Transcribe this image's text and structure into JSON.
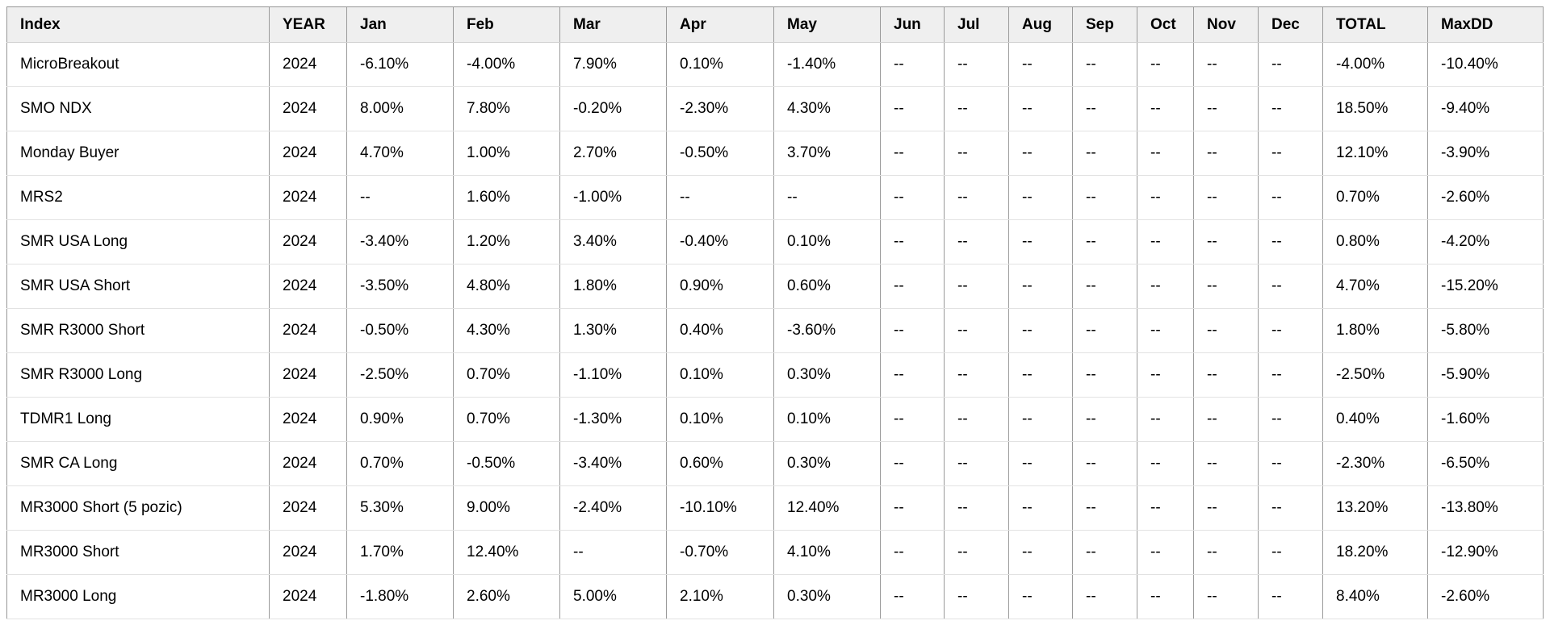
{
  "table": {
    "columns": [
      "Index",
      "YEAR",
      "Jan",
      "Feb",
      "Mar",
      "Apr",
      "May",
      "Jun",
      "Jul",
      "Aug",
      "Sep",
      "Oct",
      "Nov",
      "Dec",
      "TOTAL",
      "MaxDD"
    ],
    "rows": [
      {
        "index": "MicroBreakout",
        "year": "2024",
        "months": [
          "-6.10%",
          "-4.00%",
          "7.90%",
          "0.10%",
          "-1.40%",
          "--",
          "--",
          "--",
          "--",
          "--",
          "--",
          "--"
        ],
        "total": "-4.00%",
        "maxdd": "-10.40%"
      },
      {
        "index": "SMO NDX",
        "year": "2024",
        "months": [
          "8.00%",
          "7.80%",
          "-0.20%",
          "-2.30%",
          "4.30%",
          "--",
          "--",
          "--",
          "--",
          "--",
          "--",
          "--"
        ],
        "total": "18.50%",
        "maxdd": "-9.40%"
      },
      {
        "index": "Monday Buyer",
        "year": "2024",
        "months": [
          "4.70%",
          "1.00%",
          "2.70%",
          "-0.50%",
          "3.70%",
          "--",
          "--",
          "--",
          "--",
          "--",
          "--",
          "--"
        ],
        "total": "12.10%",
        "maxdd": "-3.90%"
      },
      {
        "index": "MRS2",
        "year": "2024",
        "months": [
          "--",
          "1.60%",
          "-1.00%",
          "--",
          "--",
          "--",
          "--",
          "--",
          "--",
          "--",
          "--",
          "--"
        ],
        "total": "0.70%",
        "maxdd": "-2.60%"
      },
      {
        "index": "SMR USA Long",
        "year": "2024",
        "months": [
          "-3.40%",
          "1.20%",
          "3.40%",
          "-0.40%",
          "0.10%",
          "--",
          "--",
          "--",
          "--",
          "--",
          "--",
          "--"
        ],
        "total": "0.80%",
        "maxdd": "-4.20%"
      },
      {
        "index": "SMR USA Short",
        "year": "2024",
        "months": [
          "-3.50%",
          "4.80%",
          "1.80%",
          "0.90%",
          "0.60%",
          "--",
          "--",
          "--",
          "--",
          "--",
          "--",
          "--"
        ],
        "total": "4.70%",
        "maxdd": "-15.20%"
      },
      {
        "index": "SMR R3000 Short",
        "year": "2024",
        "months": [
          "-0.50%",
          "4.30%",
          "1.30%",
          "0.40%",
          "-3.60%",
          "--",
          "--",
          "--",
          "--",
          "--",
          "--",
          "--"
        ],
        "total": "1.80%",
        "maxdd": "-5.80%"
      },
      {
        "index": "SMR R3000 Long",
        "year": "2024",
        "months": [
          "-2.50%",
          "0.70%",
          "-1.10%",
          "0.10%",
          "0.30%",
          "--",
          "--",
          "--",
          "--",
          "--",
          "--",
          "--"
        ],
        "total": "-2.50%",
        "maxdd": "-5.90%"
      },
      {
        "index": "TDMR1 Long",
        "year": "2024",
        "months": [
          "0.90%",
          "0.70%",
          "-1.30%",
          "0.10%",
          "0.10%",
          "--",
          "--",
          "--",
          "--",
          "--",
          "--",
          "--"
        ],
        "total": "0.40%",
        "maxdd": "-1.60%"
      },
      {
        "index": "SMR CA Long",
        "year": "2024",
        "months": [
          "0.70%",
          "-0.50%",
          "-3.40%",
          "0.60%",
          "0.30%",
          "--",
          "--",
          "--",
          "--",
          "--",
          "--",
          "--"
        ],
        "total": "-2.30%",
        "maxdd": "-6.50%"
      },
      {
        "index": "MR3000 Short (5 pozic)",
        "year": "2024",
        "months": [
          "5.30%",
          "9.00%",
          "-2.40%",
          "-10.10%",
          "12.40%",
          "--",
          "--",
          "--",
          "--",
          "--",
          "--",
          "--"
        ],
        "total": "13.20%",
        "maxdd": "-13.80%"
      },
      {
        "index": "MR3000 Short",
        "year": "2024",
        "months": [
          "1.70%",
          "12.40%",
          "--",
          "-0.70%",
          "4.10%",
          "--",
          "--",
          "--",
          "--",
          "--",
          "--",
          "--"
        ],
        "total": "18.20%",
        "maxdd": "-12.90%"
      },
      {
        "index": "MR3000 Long",
        "year": "2024",
        "months": [
          "-1.80%",
          "2.60%",
          "5.00%",
          "2.10%",
          "0.30%",
          "--",
          "--",
          "--",
          "--",
          "--",
          "--",
          "--"
        ],
        "total": "8.40%",
        "maxdd": "-2.60%"
      }
    ]
  },
  "colors": {
    "positive_bg": "#aedb86",
    "negative_bg": "#f56b6c",
    "neutral_bg": "#ffffff",
    "header_bg": "#efefef",
    "maxdd_bg": "#efefef",
    "text": "#000000"
  },
  "layout_note": "",
  "na_placeholder": "--"
}
